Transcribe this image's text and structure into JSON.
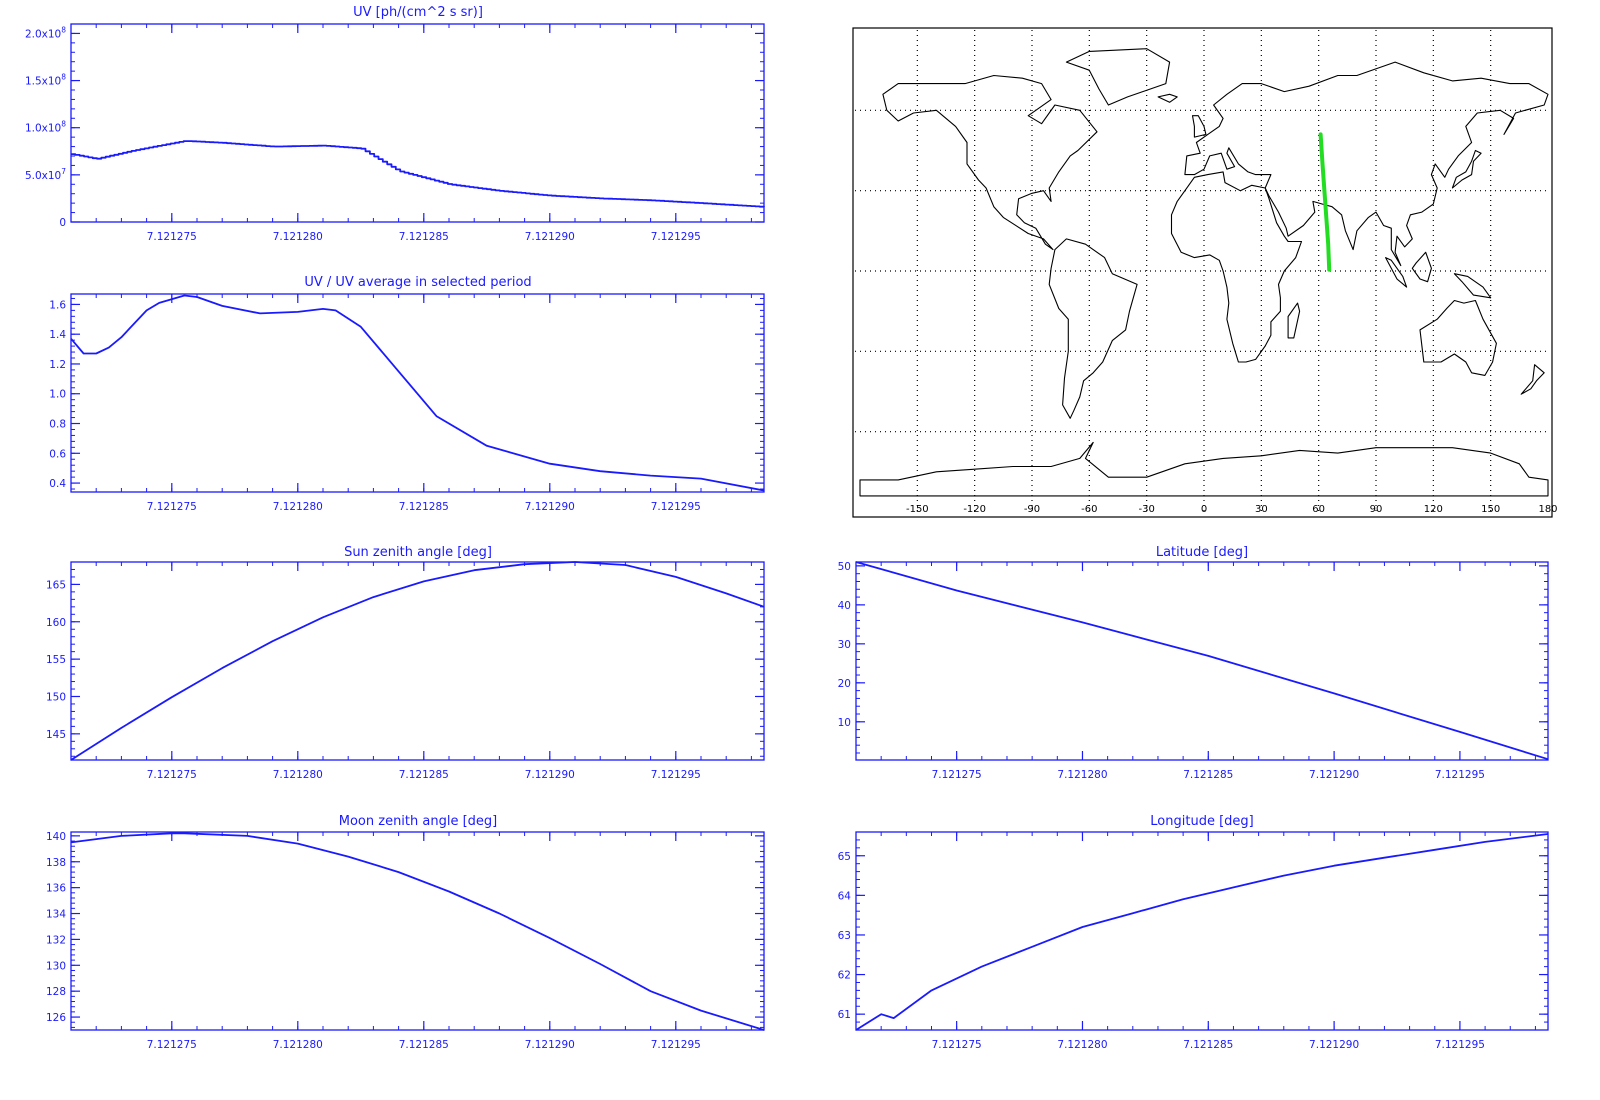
{
  "colors": {
    "axis": "#1a1aff",
    "line": "#1a1aff",
    "track": "#22dd22",
    "land": "#000000",
    "grid": "#000000"
  },
  "chart_data": [
    {
      "id": "uv",
      "type": "line",
      "title": "UV [ph/(cm^2 s sr)]",
      "xlabel": "",
      "ylabel": "",
      "xlim": [
        7.121271,
        7.1212985
      ],
      "ylim": [
        0,
        210000000
      ],
      "xticks": [
        7.121275,
        7.12128,
        7.121285,
        7.12129,
        7.121295
      ],
      "xtick_labels": [
        "7.121275",
        "7.121280",
        "7.121285",
        "7.121290",
        "7.121295"
      ],
      "yticks": [
        0,
        50000000,
        100000000,
        150000000,
        200000000
      ],
      "ytick_labels": [
        {
          "base": "0",
          "exp": ""
        },
        {
          "base": "5.0x10",
          "exp": "7"
        },
        {
          "base": "1.0x10",
          "exp": "8"
        },
        {
          "base": "1.5x10",
          "exp": "8"
        },
        {
          "base": "2.0x10",
          "exp": "8"
        }
      ],
      "stepped": true,
      "x": [
        7.121271,
        7.121272,
        7.1212735,
        7.1212755,
        7.121277,
        7.121279,
        7.121281,
        7.1212825,
        7.121284,
        7.121286,
        7.121288,
        7.12129,
        7.121292,
        7.121294,
        7.121296,
        7.1212985
      ],
      "y": [
        72000000,
        67000000,
        76000000,
        86000000,
        84000000,
        80000000,
        81000000,
        78000000,
        54000000,
        40000000,
        33000000,
        28000000,
        25000000,
        23000000,
        20000000,
        16000000
      ]
    },
    {
      "id": "uv-ratio",
      "type": "line",
      "title": "UV / UV average in selected period",
      "xlabel": "",
      "ylabel": "",
      "xlim": [
        7.121271,
        7.1212985
      ],
      "ylim": [
        0.34,
        1.67
      ],
      "xticks": [
        7.121275,
        7.12128,
        7.121285,
        7.12129,
        7.121295
      ],
      "xtick_labels": [
        "7.121275",
        "7.121280",
        "7.121285",
        "7.121290",
        "7.121295"
      ],
      "yticks": [
        0.4,
        0.6,
        0.8,
        1.0,
        1.2,
        1.4,
        1.6
      ],
      "ytick_labels": [
        "0.4",
        "0.6",
        "0.8",
        "1.0",
        "1.2",
        "1.4",
        "1.6"
      ],
      "stepped": false,
      "x": [
        7.121271,
        7.1212715,
        7.121272,
        7.1212725,
        7.121273,
        7.1212735,
        7.121274,
        7.1212745,
        7.1212755,
        7.121276,
        7.121277,
        7.1212785,
        7.12128,
        7.121281,
        7.1212815,
        7.1212825,
        7.121284,
        7.1212855,
        7.1212875,
        7.12129,
        7.121292,
        7.121294,
        7.121296,
        7.1212985
      ],
      "y": [
        1.37,
        1.27,
        1.27,
        1.31,
        1.38,
        1.47,
        1.56,
        1.61,
        1.66,
        1.65,
        1.59,
        1.54,
        1.55,
        1.57,
        1.56,
        1.45,
        1.15,
        0.85,
        0.65,
        0.53,
        0.48,
        0.45,
        0.43,
        0.35
      ]
    },
    {
      "id": "sun-zenith",
      "type": "line",
      "title": "Sun zenith angle [deg]",
      "xlabel": "",
      "ylabel": "",
      "xlim": [
        7.121271,
        7.1212985
      ],
      "ylim": [
        141.5,
        168
      ],
      "xticks": [
        7.121275,
        7.12128,
        7.121285,
        7.12129,
        7.121295
      ],
      "xtick_labels": [
        "7.121275",
        "7.121280",
        "7.121285",
        "7.121290",
        "7.121295"
      ],
      "yticks": [
        145,
        150,
        155,
        160,
        165
      ],
      "ytick_labels": [
        "145",
        "150",
        "155",
        "160",
        "165"
      ],
      "stepped": false,
      "x": [
        7.121271,
        7.121273,
        7.121275,
        7.121277,
        7.121279,
        7.121281,
        7.121283,
        7.121285,
        7.121287,
        7.121289,
        7.121291,
        7.121293,
        7.121295,
        7.121297,
        7.1212985
      ],
      "y": [
        141.5,
        145.8,
        149.9,
        153.8,
        157.4,
        160.6,
        163.3,
        165.4,
        166.9,
        167.7,
        168.0,
        167.6,
        166.0,
        163.8,
        162.0
      ]
    },
    {
      "id": "latitude",
      "type": "line",
      "title": "Latitude [deg]",
      "xlabel": "",
      "ylabel": "",
      "xlim": [
        7.121271,
        7.1212985
      ],
      "ylim": [
        0.2,
        51
      ],
      "xticks": [
        7.121275,
        7.12128,
        7.121285,
        7.12129,
        7.121295
      ],
      "xtick_labels": [
        "7.121275",
        "7.121280",
        "7.121285",
        "7.121290",
        "7.121295"
      ],
      "yticks": [
        10,
        20,
        30,
        40,
        50
      ],
      "ytick_labels": [
        "10",
        "20",
        "30",
        "40",
        "50"
      ],
      "stepped": false,
      "x": [
        7.121271,
        7.121275,
        7.12128,
        7.121285,
        7.12129,
        7.121295,
        7.1212985
      ],
      "y": [
        51,
        43.7,
        35.5,
        26.9,
        17.3,
        7.4,
        0.4
      ]
    },
    {
      "id": "moon-zenith",
      "type": "line",
      "title": "Moon zenith angle [deg]",
      "xlabel": "",
      "ylabel": "",
      "xlim": [
        7.121271,
        7.1212985
      ],
      "ylim": [
        125,
        140.3
      ],
      "xticks": [
        7.121275,
        7.12128,
        7.121285,
        7.12129,
        7.121295
      ],
      "xtick_labels": [
        "7.121275",
        "7.121280",
        "7.121285",
        "7.121290",
        "7.121295"
      ],
      "yticks": [
        126,
        128,
        130,
        132,
        134,
        136,
        138,
        140
      ],
      "ytick_labels": [
        "126",
        "128",
        "130",
        "132",
        "134",
        "136",
        "138",
        "140"
      ],
      "stepped": false,
      "x": [
        7.121271,
        7.121273,
        7.121275,
        7.1212755,
        7.121278,
        7.12128,
        7.121282,
        7.121284,
        7.121286,
        7.121288,
        7.12129,
        7.121292,
        7.121294,
        7.121296,
        7.1212985
      ],
      "y": [
        139.5,
        140.0,
        140.2,
        140.2,
        140.0,
        139.4,
        138.4,
        137.2,
        135.7,
        134.0,
        132.1,
        130.1,
        128.0,
        126.5,
        125.0
      ]
    },
    {
      "id": "longitude",
      "type": "line",
      "title": "Longitude [deg]",
      "xlabel": "",
      "ylabel": "",
      "xlim": [
        7.121271,
        7.1212985
      ],
      "ylim": [
        60.6,
        65.6
      ],
      "xticks": [
        7.121275,
        7.12128,
        7.121285,
        7.12129,
        7.121295
      ],
      "xtick_labels": [
        "7.121275",
        "7.121280",
        "7.121285",
        "7.121290",
        "7.121295"
      ],
      "yticks": [
        61,
        62,
        63,
        64,
        65
      ],
      "ytick_labels": [
        "61",
        "62",
        "63",
        "64",
        "65"
      ],
      "stepped": false,
      "x": [
        7.121271,
        7.121272,
        7.1212725,
        7.121274,
        7.121276,
        7.121278,
        7.12128,
        7.121282,
        7.121284,
        7.121286,
        7.121288,
        7.12129,
        7.121292,
        7.121294,
        7.121296,
        7.1212985
      ],
      "y": [
        60.6,
        61.0,
        60.9,
        61.6,
        62.2,
        62.7,
        63.2,
        63.55,
        63.9,
        64.2,
        64.5,
        64.75,
        64.95,
        65.15,
        65.35,
        65.55
      ]
    },
    {
      "id": "map",
      "type": "scatter",
      "title": "",
      "xlim": [
        -180,
        180
      ],
      "ylim": [
        -90,
        90
      ],
      "xticks": [
        -150,
        -120,
        -90,
        -60,
        -30,
        0,
        30,
        60,
        90,
        120,
        150,
        180
      ],
      "xtick_labels": [
        "-150",
        "-120",
        "-90",
        "-60",
        "-30",
        "0",
        "30",
        "60",
        "90",
        "120",
        "150",
        "180"
      ],
      "grid": true,
      "track": {
        "lon": [
          61,
          62,
          63,
          64,
          65,
          65.5
        ],
        "lat": [
          51,
          40,
          30,
          20,
          10,
          0.5
        ]
      }
    }
  ]
}
